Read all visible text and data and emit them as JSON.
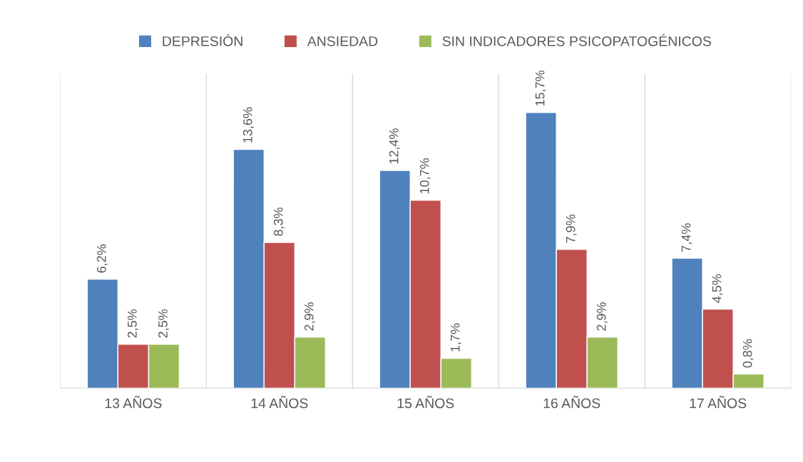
{
  "chart_data": {
    "type": "bar",
    "categories": [
      "13 AÑOS",
      "14 AÑOS",
      "15 AÑOS",
      "16 AÑOS",
      "17 AÑOS"
    ],
    "series": [
      {
        "name": "DEPRESIÓN",
        "color": "#4f81bd",
        "values": [
          6.2,
          13.6,
          12.4,
          15.7,
          7.4
        ],
        "value_labels": [
          "6,2%",
          "13,6%",
          "12,4%",
          "15,7%",
          "7,4%"
        ]
      },
      {
        "name": "ANSIEDAD",
        "color": "#c0504d",
        "values": [
          2.5,
          8.3,
          10.7,
          7.9,
          4.5
        ],
        "value_labels": [
          "2,5%",
          "8,3%",
          "10,7%",
          "7,9%",
          "4,5%"
        ]
      },
      {
        "name": "SIN INDICADORES PSICOPATOGÉNICOS",
        "color": "#9bbb59",
        "values": [
          2.5,
          2.9,
          1.7,
          2.9,
          0.8
        ],
        "value_labels": [
          "2,5%",
          "2,9%",
          "1,7%",
          "2,9%",
          "0,8%"
        ]
      }
    ],
    "grid": "x",
    "legend": "top"
  }
}
